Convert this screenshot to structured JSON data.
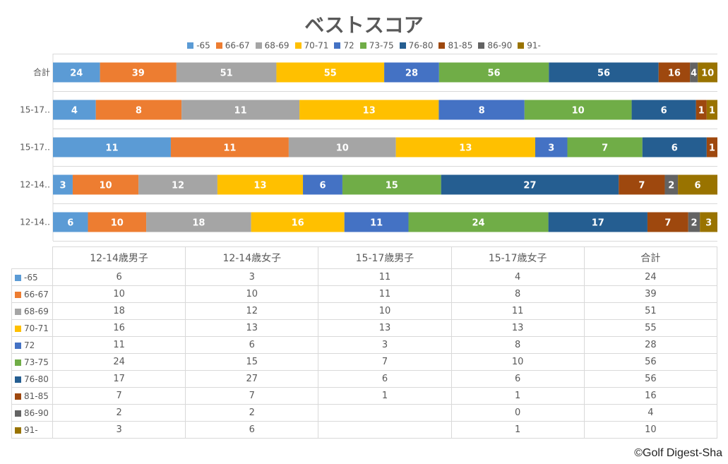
{
  "chart_data": {
    "type": "bar",
    "orientation": "horizontal",
    "stacked": "percent",
    "title": "ベストスコア",
    "legend_position": "top",
    "categories": [
      "合計",
      "15-17歳女子",
      "15-17歳男子",
      "12-14歳女子",
      "12-14歳男子"
    ],
    "category_tick_labels": [
      "合計",
      "15-17‥",
      "15-17‥",
      "12-14‥",
      "12-14‥"
    ],
    "series": [
      {
        "name": "-65",
        "color": "#5B9BD5",
        "values": [
          24,
          4,
          11,
          3,
          6
        ]
      },
      {
        "name": "66-67",
        "color": "#ED7D31",
        "values": [
          39,
          8,
          11,
          10,
          10
        ]
      },
      {
        "name": "68-69",
        "color": "#A5A5A5",
        "values": [
          51,
          11,
          10,
          12,
          18
        ]
      },
      {
        "name": "70-71",
        "color": "#FFC000",
        "values": [
          55,
          13,
          13,
          13,
          16
        ]
      },
      {
        "name": "72",
        "color": "#4472C4",
        "values": [
          28,
          8,
          3,
          6,
          11
        ]
      },
      {
        "name": "73-75",
        "color": "#70AD47",
        "values": [
          56,
          10,
          7,
          15,
          24
        ]
      },
      {
        "name": "76-80",
        "color": "#255E91",
        "values": [
          56,
          6,
          6,
          27,
          17
        ]
      },
      {
        "name": "81-85",
        "color": "#9E480E",
        "values": [
          16,
          1,
          1,
          7,
          7
        ]
      },
      {
        "name": "86-90",
        "color": "#636363",
        "values": [
          4,
          0,
          null,
          2,
          2
        ]
      },
      {
        "name": "91-",
        "color": "#997300",
        "values": [
          10,
          1,
          null,
          6,
          3
        ]
      }
    ]
  },
  "table": {
    "headers": [
      "12-14歳男子",
      "12-14歳女子",
      "15-17歳男子",
      "15-17歳女子",
      "合計"
    ],
    "rows": [
      {
        "label": "-65",
        "cells": [
          "6",
          "3",
          "11",
          "4",
          "24"
        ]
      },
      {
        "label": "66-67",
        "cells": [
          "10",
          "10",
          "11",
          "8",
          "39"
        ]
      },
      {
        "label": "68-69",
        "cells": [
          "18",
          "12",
          "10",
          "11",
          "51"
        ]
      },
      {
        "label": "70-71",
        "cells": [
          "16",
          "13",
          "13",
          "13",
          "55"
        ]
      },
      {
        "label": "72",
        "cells": [
          "11",
          "6",
          "3",
          "8",
          "28"
        ]
      },
      {
        "label": "73-75",
        "cells": [
          "24",
          "15",
          "7",
          "10",
          "56"
        ]
      },
      {
        "label": "76-80",
        "cells": [
          "17",
          "27",
          "6",
          "6",
          "56"
        ]
      },
      {
        "label": "81-85",
        "cells": [
          "7",
          "7",
          "1",
          "1",
          "16"
        ]
      },
      {
        "label": "86-90",
        "cells": [
          "2",
          "2",
          "",
          "0",
          "4"
        ]
      },
      {
        "label": "91-",
        "cells": [
          "3",
          "6",
          "",
          "1",
          "10"
        ]
      }
    ]
  },
  "copyright": "©Golf Digest-Sha"
}
